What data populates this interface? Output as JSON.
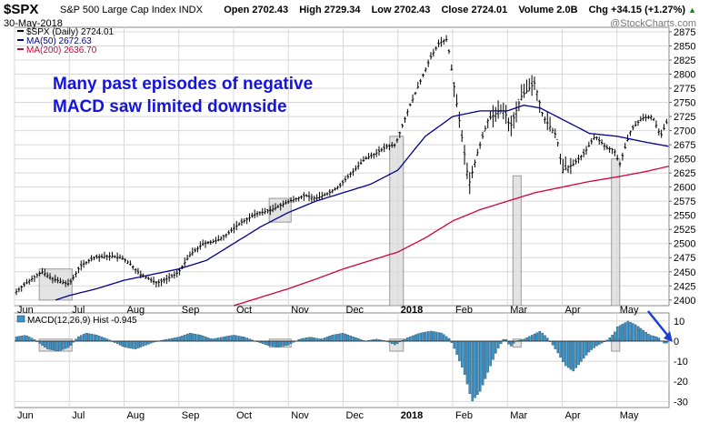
{
  "header": {
    "ticker": "$SPX",
    "description": "S&P 500 Large Cap Index INDX",
    "date": "30-May-2018",
    "open_label": "Open",
    "open": "2702.43",
    "high_label": "High",
    "high": "2729.34",
    "low_label": "Low",
    "low": "2702.43",
    "close_label": "Close",
    "close": "2724.01",
    "volume_label": "Volume",
    "volume": "2.0B",
    "chg_label": "Chg",
    "chg": "+34.15 (+1.27%)",
    "up_arrow": "▲",
    "watermark": "@StockCharts.com"
  },
  "annotation": {
    "line1": "Many past episodes of negative",
    "line2": "MACD saw limited downside"
  },
  "colors": {
    "price": "#000000",
    "ma50": "#00008b",
    "ma200": "#d2003c",
    "macd_hist": "#3a94c8",
    "highlight": "#d9d9d9",
    "annotation": "#1414dc",
    "arrow": "#1a3fd8",
    "grid": "#d8d8d8"
  },
  "chart_data": [
    {
      "type": "line",
      "title": "$SPX (Daily) 2724.01",
      "legend": [
        {
          "name": "$SPX (Daily)",
          "value": "2724.01"
        },
        {
          "name": "MA(50)",
          "value": "2672.63"
        },
        {
          "name": "MA(200)",
          "value": "2636.70"
        }
      ],
      "x_months": [
        "Jun",
        "Jul",
        "Aug",
        "Sep",
        "Oct",
        "Nov",
        "Dec",
        "2018",
        "Feb",
        "Mar",
        "Apr",
        "May"
      ],
      "x_ticks": [
        {
          "label": "Jun",
          "x": 0
        },
        {
          "label": "Jul",
          "x": 1
        },
        {
          "label": "Aug",
          "x": 2
        },
        {
          "label": "Sep",
          "x": 3
        },
        {
          "label": "Oct",
          "x": 4
        },
        {
          "label": "Nov",
          "x": 5
        },
        {
          "label": "Dec",
          "x": 6
        },
        {
          "label": "2018",
          "x": 7
        },
        {
          "label": "Feb",
          "x": 8
        },
        {
          "label": "Mar",
          "x": 9
        },
        {
          "label": "Apr",
          "x": 10
        },
        {
          "label": "May",
          "x": 11
        }
      ],
      "y_ticks": [
        2400,
        2425,
        2450,
        2475,
        2500,
        2525,
        2550,
        2575,
        2600,
        2625,
        2650,
        2675,
        2700,
        2725,
        2750,
        2775,
        2800,
        2825,
        2850,
        2875
      ],
      "ylim": [
        2390,
        2883
      ],
      "xlim": [
        0,
        11.95
      ],
      "price_anchors": [
        [
          0.0,
          2412
        ],
        [
          0.15,
          2425
        ],
        [
          0.35,
          2440
        ],
        [
          0.5,
          2450
        ],
        [
          0.65,
          2440
        ],
        [
          0.85,
          2432
        ],
        [
          1.0,
          2428
        ],
        [
          1.2,
          2460
        ],
        [
          1.45,
          2475
        ],
        [
          1.75,
          2478
        ],
        [
          1.95,
          2475
        ],
        [
          2.1,
          2465
        ],
        [
          2.3,
          2445
        ],
        [
          2.6,
          2430
        ],
        [
          2.85,
          2440
        ],
        [
          3.0,
          2450
        ],
        [
          3.2,
          2480
        ],
        [
          3.45,
          2500
        ],
        [
          3.7,
          2505
        ],
        [
          3.9,
          2518
        ],
        [
          4.1,
          2535
        ],
        [
          4.4,
          2552
        ],
        [
          4.7,
          2560
        ],
        [
          4.95,
          2572
        ],
        [
          5.1,
          2578
        ],
        [
          5.3,
          2585
        ],
        [
          5.5,
          2580
        ],
        [
          5.75,
          2590
        ],
        [
          5.95,
          2603
        ],
        [
          6.15,
          2625
        ],
        [
          6.4,
          2650
        ],
        [
          6.6,
          2660
        ],
        [
          6.8,
          2672
        ],
        [
          6.95,
          2675
        ],
        [
          7.05,
          2700
        ],
        [
          7.2,
          2740
        ],
        [
          7.4,
          2785
        ],
        [
          7.6,
          2830
        ],
        [
          7.75,
          2855
        ],
        [
          7.9,
          2862
        ],
        [
          8.0,
          2795
        ],
        [
          8.15,
          2700
        ],
        [
          8.3,
          2605
        ],
        [
          8.45,
          2660
        ],
        [
          8.65,
          2720
        ],
        [
          8.85,
          2735
        ],
        [
          8.95,
          2735
        ],
        [
          9.05,
          2705
        ],
        [
          9.25,
          2760
        ],
        [
          9.5,
          2785
        ],
        [
          9.65,
          2725
        ],
        [
          9.9,
          2690
        ],
        [
          10.0,
          2630
        ],
        [
          10.2,
          2640
        ],
        [
          10.4,
          2660
        ],
        [
          10.6,
          2690
        ],
        [
          10.8,
          2670
        ],
        [
          10.95,
          2665
        ],
        [
          11.05,
          2640
        ],
        [
          11.25,
          2700
        ],
        [
          11.45,
          2722
        ],
        [
          11.65,
          2725
        ],
        [
          11.8,
          2690
        ],
        [
          11.95,
          2724
        ]
      ],
      "ma50_anchors": [
        [
          0.75,
          2400
        ],
        [
          1.0,
          2408
        ],
        [
          1.5,
          2420
        ],
        [
          2.0,
          2435
        ],
        [
          2.5,
          2445
        ],
        [
          3.0,
          2455
        ],
        [
          3.5,
          2470
        ],
        [
          4.0,
          2500
        ],
        [
          4.5,
          2530
        ],
        [
          5.0,
          2555
        ],
        [
          5.5,
          2575
        ],
        [
          6.0,
          2590
        ],
        [
          6.5,
          2605
        ],
        [
          7.0,
          2630
        ],
        [
          7.5,
          2690
        ],
        [
          8.0,
          2725
        ],
        [
          8.5,
          2735
        ],
        [
          9.0,
          2735
        ],
        [
          9.3,
          2745
        ],
        [
          9.6,
          2740
        ],
        [
          10.0,
          2720
        ],
        [
          10.5,
          2695
        ],
        [
          11.0,
          2690
        ],
        [
          11.5,
          2680
        ],
        [
          11.95,
          2672
        ]
      ],
      "ma200_anchors": [
        [
          4.0,
          2390
        ],
        [
          4.5,
          2405
        ],
        [
          5.0,
          2420
        ],
        [
          5.5,
          2437
        ],
        [
          6.0,
          2455
        ],
        [
          6.5,
          2470
        ],
        [
          7.0,
          2485
        ],
        [
          7.5,
          2510
        ],
        [
          8.0,
          2540
        ],
        [
          8.5,
          2560
        ],
        [
          9.0,
          2575
        ],
        [
          9.5,
          2590
        ],
        [
          10.0,
          2600
        ],
        [
          10.5,
          2610
        ],
        [
          11.0,
          2618
        ],
        [
          11.5,
          2627
        ],
        [
          11.95,
          2637
        ]
      ],
      "highlight_spans": [
        {
          "x0": 0.45,
          "x1": 1.05,
          "y0": 2400,
          "y1": 2455
        },
        {
          "x0": 4.65,
          "x1": 5.05,
          "y0": 2538,
          "y1": 2580
        },
        {
          "x0": 6.85,
          "x1": 7.1,
          "y0": 2390,
          "y1": 2690
        },
        {
          "x0": 9.1,
          "x1": 9.25,
          "y0": 2390,
          "y1": 2620
        },
        {
          "x0": 10.9,
          "x1": 11.05,
          "y0": 2390,
          "y1": 2650
        }
      ]
    },
    {
      "type": "bar",
      "title": "MACD(12,26,9) Hist -0.945",
      "legend": [
        {
          "name": "MACD(12,26,9) Hist",
          "value": "-0.945"
        }
      ],
      "y_ticks": [
        10,
        0,
        -10,
        -20,
        -30
      ],
      "ylim": [
        -33,
        14
      ],
      "hist_anchors": [
        [
          0.0,
          2
        ],
        [
          0.2,
          3
        ],
        [
          0.35,
          1
        ],
        [
          0.45,
          -1
        ],
        [
          0.6,
          -4
        ],
        [
          0.8,
          -5
        ],
        [
          1.0,
          -3
        ],
        [
          1.15,
          2
        ],
        [
          1.3,
          4
        ],
        [
          1.5,
          3
        ],
        [
          1.7,
          1
        ],
        [
          1.85,
          -1
        ],
        [
          2.0,
          -3
        ],
        [
          2.2,
          -4
        ],
        [
          2.4,
          -2
        ],
        [
          2.6,
          0
        ],
        [
          2.8,
          1
        ],
        [
          3.0,
          2
        ],
        [
          3.2,
          4
        ],
        [
          3.4,
          3
        ],
        [
          3.6,
          1
        ],
        [
          3.8,
          2
        ],
        [
          4.0,
          3
        ],
        [
          4.2,
          2
        ],
        [
          4.4,
          0
        ],
        [
          4.6,
          -2
        ],
        [
          4.8,
          -3
        ],
        [
          5.0,
          -2
        ],
        [
          5.2,
          1
        ],
        [
          5.4,
          2
        ],
        [
          5.6,
          1
        ],
        [
          5.8,
          3
        ],
        [
          6.0,
          4
        ],
        [
          6.2,
          2
        ],
        [
          6.4,
          0
        ],
        [
          6.6,
          1
        ],
        [
          6.8,
          0
        ],
        [
          6.95,
          -2
        ],
        [
          7.05,
          0
        ],
        [
          7.2,
          2
        ],
        [
          7.4,
          4
        ],
        [
          7.6,
          5
        ],
        [
          7.8,
          4
        ],
        [
          7.95,
          1
        ],
        [
          8.05,
          -5
        ],
        [
          8.2,
          -15
        ],
        [
          8.35,
          -30
        ],
        [
          8.5,
          -25
        ],
        [
          8.65,
          -15
        ],
        [
          8.8,
          -5
        ],
        [
          8.95,
          2
        ],
        [
          9.05,
          -3
        ],
        [
          9.15,
          0
        ],
        [
          9.3,
          1
        ],
        [
          9.45,
          3
        ],
        [
          9.6,
          5
        ],
        [
          9.75,
          1
        ],
        [
          9.9,
          -5
        ],
        [
          10.05,
          -12
        ],
        [
          10.2,
          -15
        ],
        [
          10.35,
          -10
        ],
        [
          10.5,
          -5
        ],
        [
          10.65,
          -2
        ],
        [
          10.8,
          0
        ],
        [
          10.95,
          4
        ],
        [
          11.0,
          7
        ],
        [
          11.2,
          10
        ],
        [
          11.35,
          8
        ],
        [
          11.5,
          5
        ],
        [
          11.6,
          3
        ],
        [
          11.75,
          2
        ],
        [
          11.85,
          -1
        ],
        [
          11.95,
          -1
        ]
      ],
      "highlight_spans": [
        {
          "x0": 0.45,
          "x1": 1.05,
          "y0": -5,
          "y1": 1
        },
        {
          "x0": 4.65,
          "x1": 5.05,
          "y0": -3,
          "y1": 1
        },
        {
          "x0": 6.85,
          "x1": 7.1,
          "y0": -5,
          "y1": 1
        },
        {
          "x0": 9.1,
          "x1": 9.25,
          "y0": -3,
          "y1": 1
        },
        {
          "x0": 10.9,
          "x1": 11.05,
          "y0": -5,
          "y1": 1
        }
      ]
    }
  ]
}
